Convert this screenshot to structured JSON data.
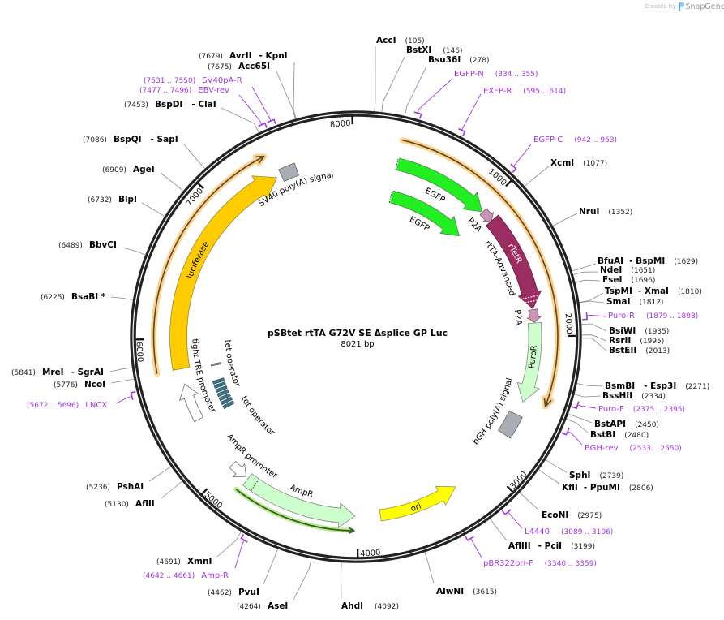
{
  "credit": {
    "prefix": "Created by",
    "brand": "SnapGene"
  },
  "map": {
    "title": "pSBtet rtTA G72V SE Δsplice GP Luc",
    "length": "8021 bp"
  },
  "ticks": [
    "1000",
    "2000",
    "3000",
    "4000",
    "5000",
    "6000",
    "7000",
    "8000"
  ],
  "features": {
    "egfp_1": "EGFP",
    "egfp_2": "EGFP",
    "p2a_1": "P2A",
    "rtetr": "rTetR",
    "rtta_advanced": "rtTA-Advanced",
    "p2a_2": "P2A",
    "puror": "PuroR",
    "bgh_polya": "bGH poly(A) signal",
    "ori": "ori",
    "ampr": "AmpR",
    "ampr_promoter": "AmpR promoter",
    "tet_operator_1": "tet operator",
    "tet_operator_2": "tet operator",
    "tight_tre_promoter": "tight TRE promoter",
    "luciferase": "luciferase",
    "sv40_polya": "SV40 poly(A) signal"
  },
  "sites": [
    {
      "name": "AccI",
      "pos": "(105)"
    },
    {
      "name": "BstXI",
      "pos": "(146)"
    },
    {
      "name": "Bsu36I",
      "pos": "(278)"
    },
    {
      "name": "XcmI",
      "pos": "(1077)"
    },
    {
      "name": "NruI",
      "pos": "(1352)"
    },
    {
      "name": "BfuAI",
      "alt": "- BspMI",
      "pos": "(1629)"
    },
    {
      "name": "NdeI",
      "pos": "(1651)"
    },
    {
      "name": "FseI",
      "pos": "(1696)"
    },
    {
      "name": "TspMI",
      "alt": "- XmaI",
      "pos": "(1810)"
    },
    {
      "name": "SmaI",
      "pos": "(1812)"
    },
    {
      "name": "BsiWI",
      "pos": "(1935)"
    },
    {
      "name": "RsrII",
      "pos": "(1995)"
    },
    {
      "name": "BstEII",
      "pos": "(2013)"
    },
    {
      "name": "BsmBI",
      "alt": "- Esp3I",
      "pos": "(2271)"
    },
    {
      "name": "BssHII",
      "pos": "(2334)"
    },
    {
      "name": "BstAPI",
      "pos": "(2450)"
    },
    {
      "name": "BstBI",
      "pos": "(2480)"
    },
    {
      "name": "SphI",
      "pos": "(2739)"
    },
    {
      "name": "KflI",
      "alt": "- PpuMI",
      "pos": "(2806)"
    },
    {
      "name": "EcoNI",
      "pos": "(2975)"
    },
    {
      "name": "AflIII",
      "alt": "- PciI",
      "pos": "(3199)"
    },
    {
      "name": "AlwNI",
      "pos": "(3615)"
    },
    {
      "name": "AhdI",
      "pos": "(4092)"
    },
    {
      "name": "AseI",
      "pos": "(4264)"
    },
    {
      "name": "PvuI",
      "pos": "(4462)"
    },
    {
      "name": "XmnI",
      "pos": "(4691)"
    },
    {
      "name": "AflII",
      "pos": "(5130)"
    },
    {
      "name": "PshAI",
      "pos": "(5236)"
    },
    {
      "name": "NcoI",
      "pos": "(5776)"
    },
    {
      "name": "MreI",
      "alt": "- SgrAI",
      "pos": "(5841)"
    },
    {
      "name": "BsaBI *",
      "pos": "(6225)"
    },
    {
      "name": "BbvCI",
      "pos": "(6489)"
    },
    {
      "name": "BlpI",
      "pos": "(6732)"
    },
    {
      "name": "AgeI",
      "pos": "(6909)"
    },
    {
      "name": "BspQI",
      "alt": "- SapI",
      "pos": "(7086)"
    },
    {
      "name": "BspDI",
      "alt": "- ClaI",
      "pos": "(7453)"
    },
    {
      "name": "Acc65I",
      "pos": "(7675)"
    },
    {
      "name": "AvrII",
      "alt": "- KpnI",
      "pos": "(7679)"
    }
  ],
  "primers": [
    {
      "name": "EGFP-N",
      "range": "(334 .. 355)"
    },
    {
      "name": "EXFP-R",
      "range": "(595 .. 614)"
    },
    {
      "name": "EGFP-C",
      "range": "(942 .. 963)"
    },
    {
      "name": "Puro-R",
      "range": "(1879 .. 1898)"
    },
    {
      "name": "Puro-F",
      "range": "(2375 .. 2395)"
    },
    {
      "name": "BGH-rev",
      "range": "(2533 .. 2550)"
    },
    {
      "name": "L4440",
      "range": "(3089 .. 3106)"
    },
    {
      "name": "pBR322ori-F",
      "range": "(3340 .. 3359)"
    },
    {
      "name": "Amp-R",
      "range": "(4642 .. 4661)"
    },
    {
      "name": "LNCX",
      "range": "(5672 .. 5696)"
    },
    {
      "name": "EBV-rev",
      "range": "(7477 .. 7496)"
    },
    {
      "name": "SV40pA-R",
      "range": "(7531 .. 7550)"
    }
  ],
  "palette": {
    "primer": "#a035e6",
    "egfp": "#22ee22",
    "p2a": "#c896b4",
    "rtetr": "#9b2d62",
    "puror": "#ccffcc",
    "polya": "#a9adb4",
    "ori": "#ffff00",
    "ampr": "#ccffcc",
    "promoter": "#ffffff",
    "luciferase": "#ffcc00",
    "tet_operator": "#3f7384",
    "tet_operator_single": "#8a8f95"
  }
}
